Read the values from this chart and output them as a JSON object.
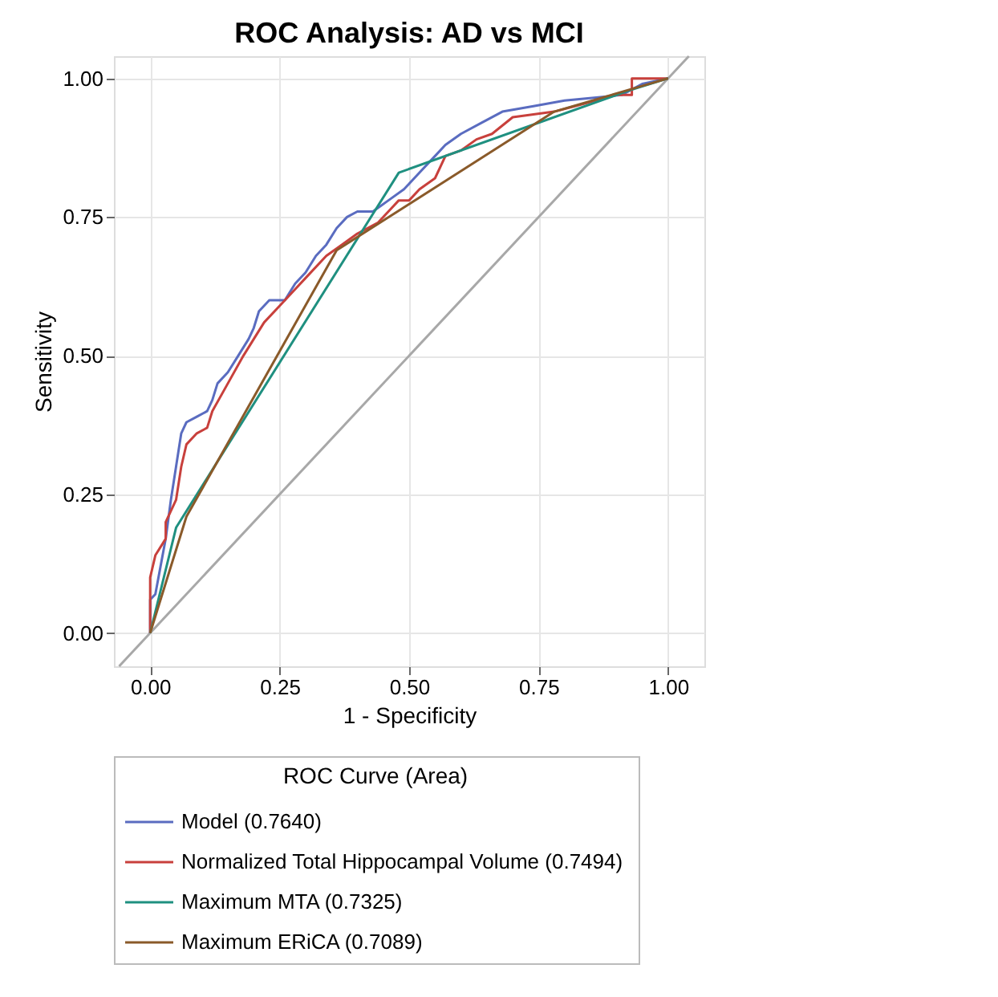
{
  "chart_data": {
    "type": "line",
    "title": "ROC Analysis: AD vs MCI",
    "xlabel": "1 - Specificity",
    "ylabel": "Sensitivity",
    "legend_title": "ROC Curve (Area)",
    "xlim": [
      -0.07,
      1.07
    ],
    "ylim": [
      -0.06,
      1.04
    ],
    "xticks": [
      {
        "value": 0,
        "label": "0.00"
      },
      {
        "value": 0.25,
        "label": "0.25"
      },
      {
        "value": 0.5,
        "label": "0.50"
      },
      {
        "value": 0.75,
        "label": "0.75"
      },
      {
        "value": 1,
        "label": "1.00"
      }
    ],
    "yticks": [
      {
        "value": 0,
        "label": "0.00"
      },
      {
        "value": 0.25,
        "label": "0.25"
      },
      {
        "value": 0.5,
        "label": "0.50"
      },
      {
        "value": 0.75,
        "label": "0.75"
      },
      {
        "value": 1,
        "label": "1.00"
      }
    ],
    "grid": true,
    "legend": "bottom",
    "marker": "none",
    "line_style": "solid",
    "series": [
      {
        "type": "line",
        "color": "#a8a8a8",
        "x": [
          -0.06,
          1.04
        ],
        "values": [
          -0.06,
          1.04
        ]
      },
      {
        "name": "Model  (0.7640)",
        "color": "#5a6cc0",
        "x": [
          0,
          0,
          0.01,
          0.02,
          0.03,
          0.04,
          0.05,
          0.06,
          0.07,
          0.09,
          0.11,
          0.12,
          0.13,
          0.15,
          0.17,
          0.19,
          0.2,
          0.21,
          0.23,
          0.26,
          0.28,
          0.3,
          0.32,
          0.34,
          0.36,
          0.38,
          0.4,
          0.43,
          0.46,
          0.49,
          0.52,
          0.55,
          0.57,
          0.6,
          0.64,
          0.68,
          0.74,
          0.8,
          0.91,
          0.95,
          1
        ],
        "values": [
          0,
          0.06,
          0.07,
          0.12,
          0.17,
          0.24,
          0.3,
          0.36,
          0.38,
          0.39,
          0.4,
          0.42,
          0.45,
          0.47,
          0.5,
          0.53,
          0.55,
          0.58,
          0.6,
          0.6,
          0.63,
          0.65,
          0.68,
          0.7,
          0.73,
          0.75,
          0.76,
          0.76,
          0.78,
          0.8,
          0.83,
          0.86,
          0.88,
          0.9,
          0.92,
          0.94,
          0.95,
          0.96,
          0.97,
          0.99,
          1
        ]
      },
      {
        "name": "Normalized Total Hippocampal Volume  (0.7494)",
        "color": "#c8403c",
        "x": [
          0,
          0,
          0.01,
          0.03,
          0.03,
          0.05,
          0.06,
          0.07,
          0.09,
          0.11,
          0.12,
          0.15,
          0.18,
          0.2,
          0.22,
          0.25,
          0.28,
          0.3,
          0.34,
          0.37,
          0.4,
          0.44,
          0.48,
          0.5,
          0.52,
          0.55,
          0.57,
          0.6,
          0.63,
          0.66,
          0.7,
          0.78,
          0.82,
          0.9,
          0.93,
          0.93,
          1
        ],
        "values": [
          0,
          0.1,
          0.14,
          0.17,
          0.2,
          0.24,
          0.3,
          0.34,
          0.36,
          0.37,
          0.4,
          0.45,
          0.5,
          0.53,
          0.56,
          0.59,
          0.62,
          0.64,
          0.68,
          0.7,
          0.72,
          0.74,
          0.78,
          0.78,
          0.8,
          0.82,
          0.86,
          0.87,
          0.89,
          0.9,
          0.93,
          0.94,
          0.95,
          0.97,
          0.97,
          1,
          1
        ]
      },
      {
        "name": "Maximum MTA  (0.7325)",
        "color": "#1f9080",
        "x": [
          0,
          0.05,
          0.48,
          0.93,
          1
        ],
        "values": [
          0,
          0.19,
          0.83,
          0.98,
          1
        ]
      },
      {
        "name": "Maximum ERiCA  (0.7089)",
        "color": "#8a5a2a",
        "x": [
          0,
          0.07,
          0.36,
          0.78,
          1
        ],
        "values": [
          0,
          0.21,
          0.69,
          0.94,
          1
        ]
      }
    ]
  }
}
